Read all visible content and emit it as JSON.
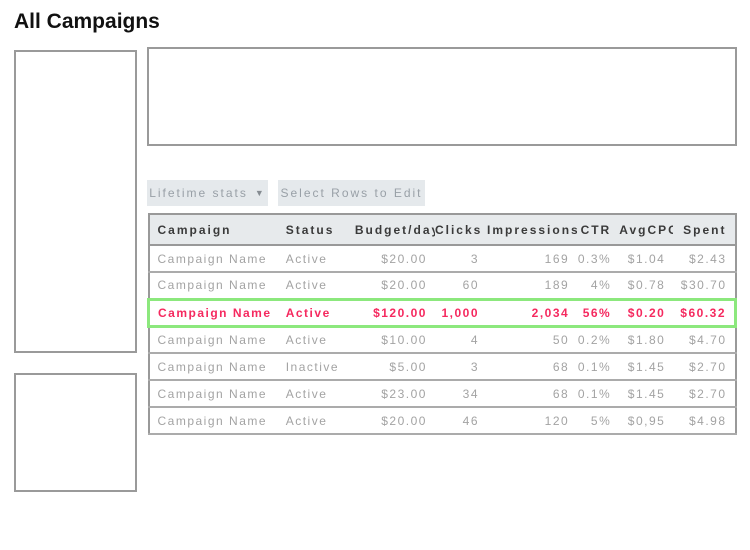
{
  "page": {
    "title": "All Campaigns"
  },
  "toolbar": {
    "lifetime_stats_label": "Lifetime stats",
    "dropdown_caret": "▼",
    "select_rows_label": "Select Rows to Edit"
  },
  "table": {
    "columns": [
      "Campaign",
      "Status",
      "Budget/day",
      "Clicks",
      "Impressions",
      "CTR",
      "AvgCPC",
      "Spent"
    ],
    "rows": [
      {
        "campaign": "Campaign Name",
        "status": "Active",
        "budget": "$20.00",
        "clicks": "3",
        "impressions": "169",
        "ctr": "0.3%",
        "avgcpc": "$1.04",
        "spent": "$2.43",
        "highlighted": false
      },
      {
        "campaign": "Campaign Name",
        "status": "Active",
        "budget": "$20.00",
        "clicks": "60",
        "impressions": "189",
        "ctr": "4%",
        "avgcpc": "$0.78",
        "spent": "$30.70",
        "highlighted": false
      },
      {
        "campaign": "Campaign Name",
        "status": "Active",
        "budget": "$120.00",
        "clicks": "1,000",
        "impressions": "2,034",
        "ctr": "56%",
        "avgcpc": "$0.20",
        "spent": "$60.32",
        "highlighted": true
      },
      {
        "campaign": "Campaign Name",
        "status": "Active",
        "budget": "$10.00",
        "clicks": "4",
        "impressions": "50",
        "ctr": "0.2%",
        "avgcpc": "$1.80",
        "spent": "$4.70",
        "highlighted": false
      },
      {
        "campaign": "Campaign Name",
        "status": "Inactive",
        "budget": "$5.00",
        "clicks": "3",
        "impressions": "68",
        "ctr": "0.1%",
        "avgcpc": "$1.45",
        "spent": "$2.70",
        "highlighted": false
      },
      {
        "campaign": "Campaign Name",
        "status": "Active",
        "budget": "$23.00",
        "clicks": "34",
        "impressions": "68",
        "ctr": "0.1%",
        "avgcpc": "$1.45",
        "spent": "$2.70",
        "highlighted": false
      },
      {
        "campaign": "Campaign Name",
        "status": "Active",
        "budget": "$20.00",
        "clicks": "46",
        "impressions": "120",
        "ctr": "5%",
        "avgcpc": "$0,95",
        "spent": "$4.98",
        "highlighted": false
      }
    ]
  },
  "colors": {
    "accent_pink": "#f5295f",
    "highlight_green": "#8ce87d",
    "border_gray": "#999999",
    "header_bg": "#e7eaec",
    "button_bg": "#e5e9ec",
    "text_gray": "#a3a3a3"
  }
}
